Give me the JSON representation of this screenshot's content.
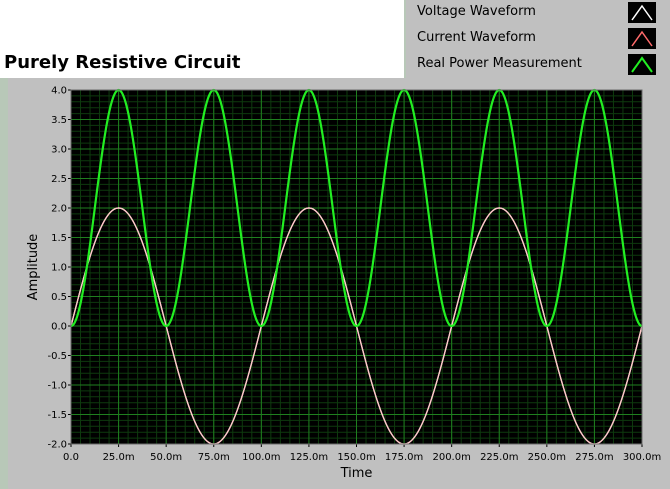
{
  "title": "Purely Resistive Circuit",
  "legend": [
    {
      "label": "Voltage Waveform",
      "color": "#ffffff"
    },
    {
      "label": "Current Waveform",
      "color": "#ff6a6a"
    },
    {
      "label": "Real Power Measurement",
      "color": "#22ee22"
    }
  ],
  "colors": {
    "plot_background": "#000000",
    "major_grid": "#1f7f1f",
    "minor_grid": "#0e3a0e",
    "voltage": "#ffffff",
    "current": "#ffc8c8",
    "power": "#22ee22"
  },
  "chart_data": {
    "type": "line",
    "xlabel": "Time",
    "ylabel": "Amplitude",
    "xlim": [
      0,
      0.3
    ],
    "ylim": [
      -2.0,
      4.0
    ],
    "x_ticks": [
      "0.0",
      "25.0m",
      "50.0m",
      "75.0m",
      "100.0m",
      "125.0m",
      "150.0m",
      "175.0m",
      "200.0m",
      "225.0m",
      "250.0m",
      "275.0m",
      "300.0m"
    ],
    "y_ticks": [
      "4.0",
      "3.5",
      "3.0",
      "2.5",
      "2.0",
      "1.5",
      "1.0",
      "0.5",
      "0.0",
      "-0.5",
      "-1.0",
      "-1.5",
      "-2.0"
    ],
    "grid": true,
    "series": [
      {
        "name": "Voltage Waveform",
        "function": "2*sin(2*pi*10*t)",
        "amplitude": 2.0,
        "frequency_hz": 10
      },
      {
        "name": "Current Waveform",
        "function": "2*sin(2*pi*10*t)",
        "amplitude": 2.0,
        "frequency_hz": 10
      },
      {
        "name": "Real Power Measurement",
        "function": "4*sin(2*pi*10*t)^2",
        "amplitude": 4.0,
        "frequency_hz": 20
      }
    ]
  }
}
